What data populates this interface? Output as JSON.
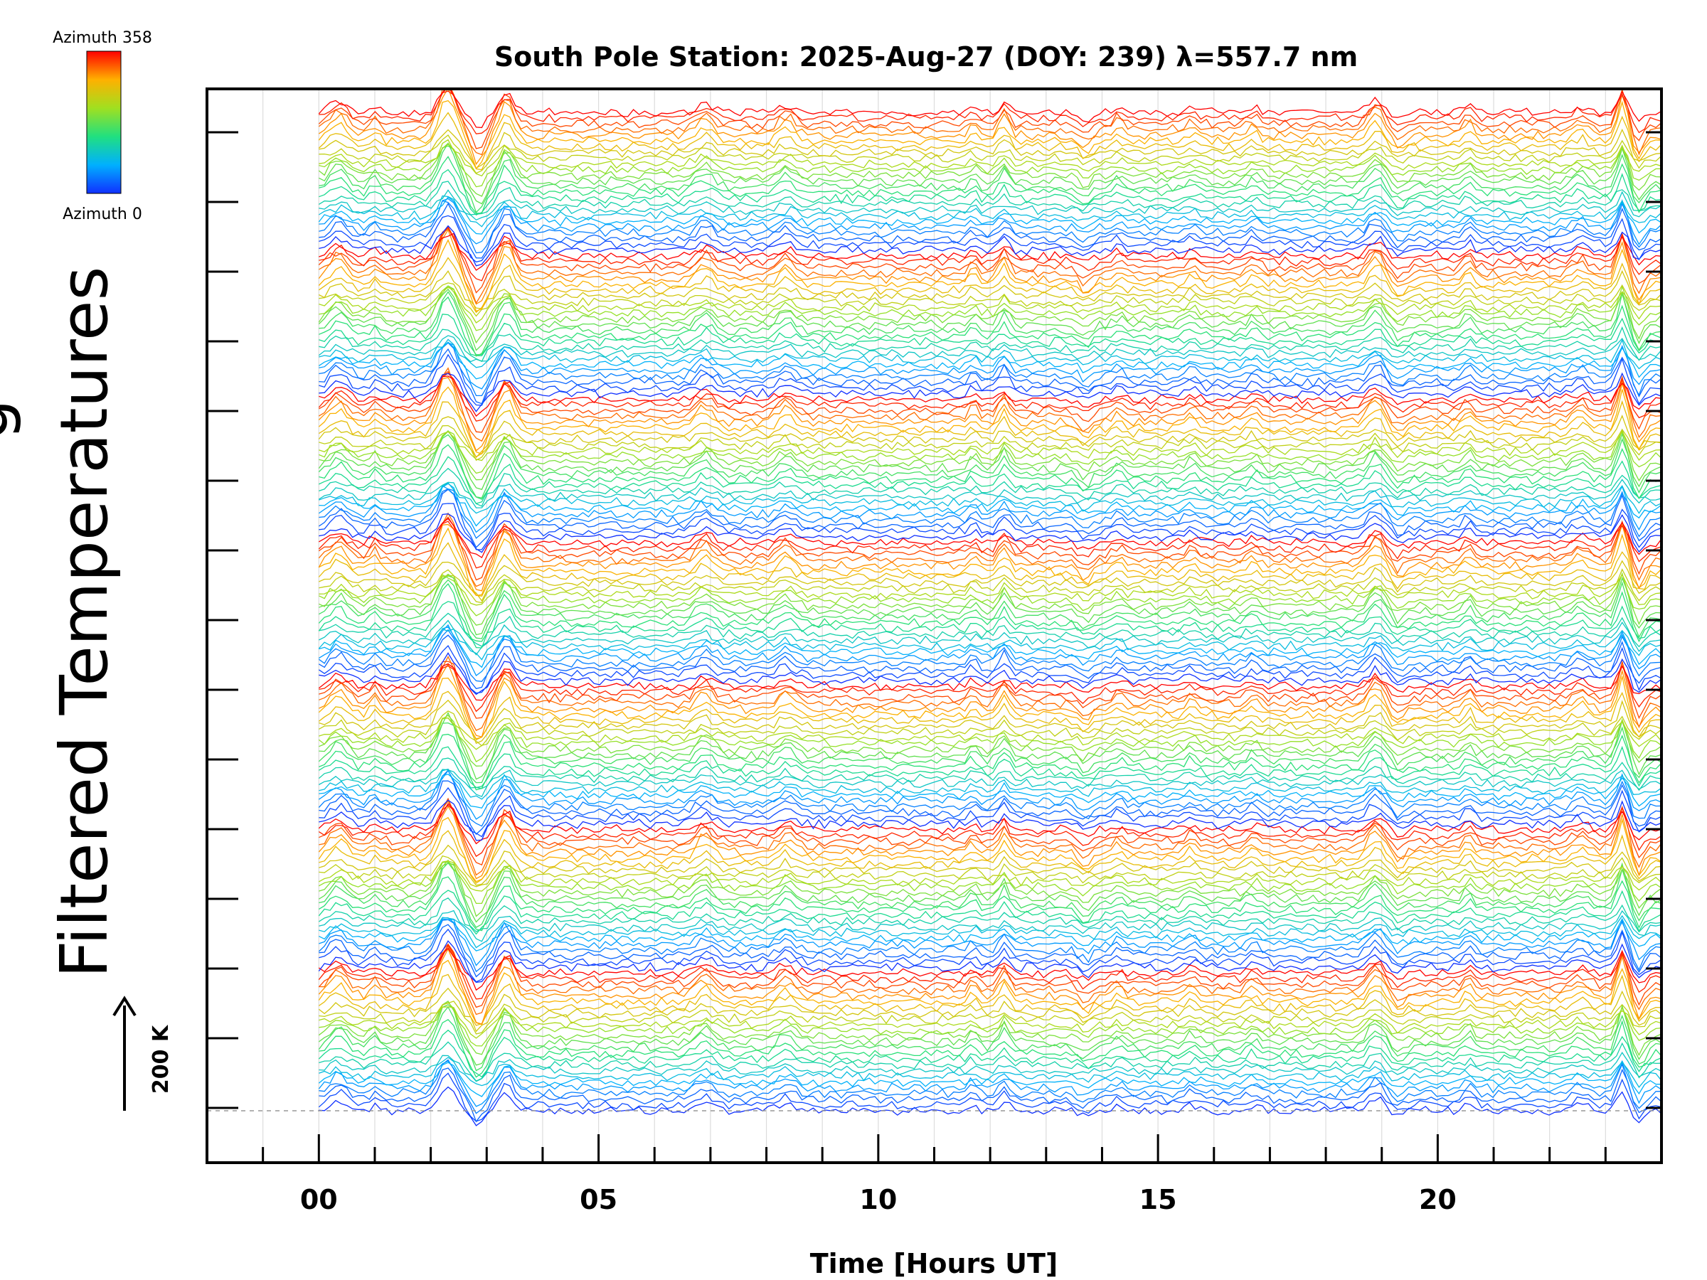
{
  "chart_data": {
    "type": "line",
    "title": "South Pole Station: 2025-Aug-27 (DOY: 239) λ=557.7 nm",
    "xlabel": "Time [Hours UT]",
    "ylabel": "Filtered Temperatures",
    "ylabel_cropped_fragment": "g",
    "xlim": [
      -2,
      24
    ],
    "x_ticks": [
      0,
      5,
      10,
      15,
      20
    ],
    "x_tick_labels": [
      "00",
      "05",
      "10",
      "15",
      "20"
    ],
    "grid": true,
    "scale_bar": {
      "label": "200 K",
      "value_K": 200
    },
    "colorbar": {
      "label_max": "Azimuth 358",
      "label_min": "Azimuth 0",
      "range": [
        0,
        358
      ],
      "colormap": "rainbow"
    },
    "stack": {
      "groups": 7,
      "traces_per_group": 25,
      "time_start_hours": 0,
      "time_end_hours": 24,
      "samples": 240
    },
    "wave_events_hours": [
      {
        "t": 0.35,
        "amp": 1.1,
        "w": 0.22
      },
      {
        "t": 1.0,
        "amp": 0.55,
        "w": 0.12
      },
      {
        "t": 2.3,
        "amp": 2.6,
        "w": 0.22
      },
      {
        "t": 2.85,
        "amp": -1.6,
        "w": 0.18
      },
      {
        "t": 3.35,
        "amp": 1.9,
        "w": 0.18
      },
      {
        "t": 6.9,
        "amp": 0.9,
        "w": 0.22
      },
      {
        "t": 8.35,
        "amp": 0.8,
        "w": 0.2
      },
      {
        "t": 11.7,
        "amp": 0.6,
        "w": 0.1
      },
      {
        "t": 12.25,
        "amp": 1.1,
        "w": 0.12
      },
      {
        "t": 13.7,
        "amp": -0.7,
        "w": 0.15
      },
      {
        "t": 14.3,
        "amp": 0.5,
        "w": 0.12
      },
      {
        "t": 15.6,
        "amp": 0.5,
        "w": 0.15
      },
      {
        "t": 16.7,
        "amp": 0.5,
        "w": 0.15
      },
      {
        "t": 18.9,
        "amp": 1.2,
        "w": 0.2
      },
      {
        "t": 19.3,
        "amp": -0.6,
        "w": 0.15
      },
      {
        "t": 20.55,
        "amp": 0.7,
        "w": 0.12
      },
      {
        "t": 22.55,
        "amp": 0.6,
        "w": 0.2
      },
      {
        "t": 23.3,
        "amp": 2.2,
        "w": 0.12
      },
      {
        "t": 23.6,
        "amp": -1.2,
        "w": 0.12
      }
    ]
  }
}
